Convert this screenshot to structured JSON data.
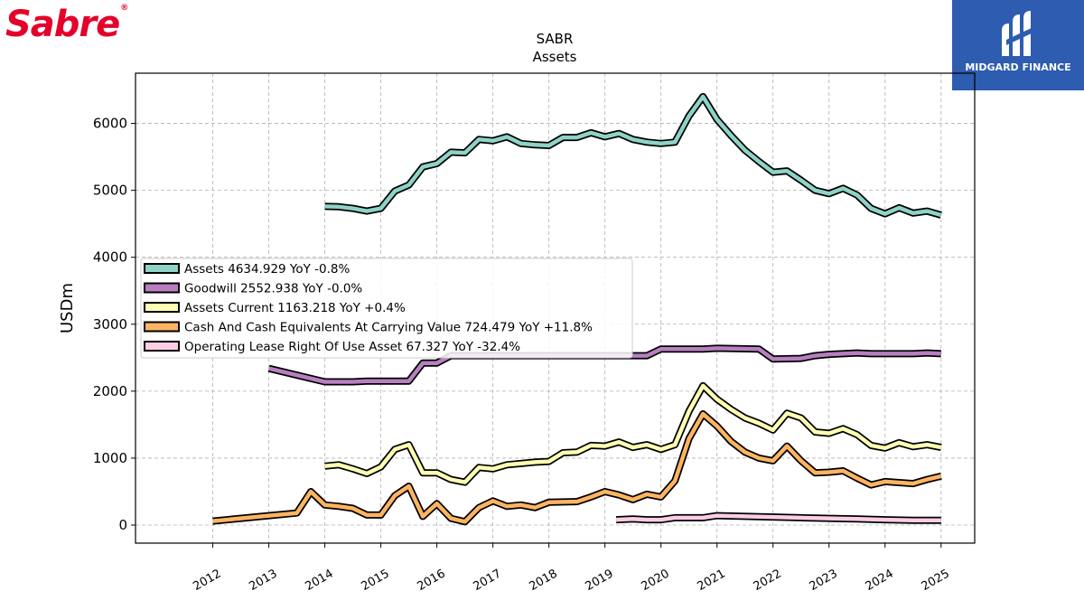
{
  "brand": {
    "left_logo": "Sabre",
    "right_logo": "MIDGARD FINANCE"
  },
  "colors": {
    "assets": "#8dd3c7",
    "goodwill": "#b77fc0",
    "assets_current": "#ffffb3",
    "cash": "#fdb462",
    "lease": "#fccde5",
    "outline": "#000000",
    "grid": "#b0b0b0",
    "logo_red": "#e4002b",
    "logo_blue": "#2d5cb0"
  },
  "chart_data": {
    "type": "line",
    "title": "SABR",
    "subtitle": "Assets",
    "ylabel": "USDm",
    "xlabel": "",
    "ylim": [
      -270,
      6750
    ],
    "xlim": [
      2010.62,
      2025.6
    ],
    "y_ticks": [
      0,
      1000,
      2000,
      3000,
      4000,
      5000,
      6000
    ],
    "x_ticks": [
      "2012",
      "2013",
      "2014",
      "2015",
      "2016",
      "2017",
      "2018",
      "2019",
      "2020",
      "2021",
      "2022",
      "2023",
      "2024",
      "2025"
    ],
    "grid": true,
    "legend_position": "center-left",
    "series": [
      {
        "name": "Assets",
        "legend": "Assets  4634.929 YoY -0.8%",
        "color_key": "assets",
        "x": [
          2014.0,
          2014.25,
          2014.5,
          2014.75,
          2015.0,
          2015.25,
          2015.5,
          2015.75,
          2016.0,
          2016.25,
          2016.5,
          2016.75,
          2017.0,
          2017.25,
          2017.5,
          2017.75,
          2018.0,
          2018.25,
          2018.5,
          2018.75,
          2019.0,
          2019.25,
          2019.5,
          2019.75,
          2020.0,
          2020.25,
          2020.5,
          2020.75,
          2021.0,
          2021.25,
          2021.5,
          2021.75,
          2022.0,
          2022.25,
          2022.5,
          2022.75,
          2023.0,
          2023.25,
          2023.5,
          2023.75,
          2024.0,
          2024.25,
          2024.5,
          2024.75,
          2025.0
        ],
        "y": [
          4760,
          4755,
          4730,
          4690,
          4730,
          4990,
          5080,
          5350,
          5400,
          5570,
          5560,
          5760,
          5740,
          5800,
          5700,
          5680,
          5670,
          5790,
          5790,
          5860,
          5800,
          5850,
          5760,
          5720,
          5700,
          5720,
          6110,
          6400,
          6060,
          5820,
          5600,
          5430,
          5270,
          5290,
          5150,
          5000,
          4950,
          5030,
          4930,
          4730,
          4650,
          4740,
          4660,
          4690,
          4630
        ]
      },
      {
        "name": "Goodwill",
        "legend": "Goodwill  2552.938 YoY -0.0%",
        "color_key": "goodwill",
        "x": [
          2013.0,
          2014.0,
          2014.5,
          2014.75,
          2015.0,
          2015.5,
          2015.75,
          2016.0,
          2016.25,
          2016.5,
          2017.0,
          2018.0,
          2019.0,
          2019.75,
          2020.0,
          2020.75,
          2021.0,
          2021.75,
          2022.0,
          2022.5,
          2022.75,
          2023.0,
          2023.25,
          2023.5,
          2023.75,
          2024.0,
          2024.5,
          2024.75,
          2025.0
        ],
        "y": [
          2340,
          2140,
          2140,
          2150,
          2150,
          2150,
          2420,
          2420,
          2530,
          2530,
          2530,
          2530,
          2530,
          2530,
          2630,
          2630,
          2640,
          2630,
          2480,
          2490,
          2530,
          2550,
          2560,
          2570,
          2560,
          2560,
          2560,
          2570,
          2560
        ]
      },
      {
        "name": "Assets Current",
        "legend": "Assets Current  1163.218 YoY +0.4%",
        "color_key": "assets_current",
        "x": [
          2014.0,
          2014.25,
          2014.5,
          2014.75,
          2015.0,
          2015.25,
          2015.5,
          2015.75,
          2016.0,
          2016.25,
          2016.5,
          2016.75,
          2017.0,
          2017.25,
          2017.5,
          2017.75,
          2018.0,
          2018.25,
          2018.5,
          2018.75,
          2019.0,
          2019.25,
          2019.5,
          2019.75,
          2020.0,
          2020.25,
          2020.5,
          2020.75,
          2021.0,
          2021.25,
          2021.5,
          2021.75,
          2022.0,
          2022.25,
          2022.5,
          2022.75,
          2023.0,
          2023.25,
          2023.5,
          2023.75,
          2024.0,
          2024.25,
          2024.5,
          2024.75,
          2025.0
        ],
        "y": [
          880,
          900,
          840,
          770,
          870,
          1130,
          1200,
          780,
          780,
          680,
          640,
          860,
          840,
          900,
          920,
          940,
          950,
          1080,
          1090,
          1190,
          1180,
          1240,
          1160,
          1200,
          1130,
          1200,
          1700,
          2080,
          1880,
          1730,
          1600,
          1520,
          1420,
          1670,
          1600,
          1390,
          1370,
          1440,
          1350,
          1190,
          1150,
          1230,
          1170,
          1200,
          1160
        ]
      },
      {
        "name": "Cash And Cash Equivalents At Carrying Value",
        "legend": "Cash And Cash Equivalents At Carrying Value  724.479 YoY +11.8%",
        "color_key": "cash",
        "x": [
          2012.0,
          2013.0,
          2013.5,
          2013.75,
          2014.0,
          2014.25,
          2014.5,
          2014.75,
          2015.0,
          2015.25,
          2015.5,
          2015.75,
          2016.0,
          2016.25,
          2016.5,
          2016.75,
          2017.0,
          2017.25,
          2017.5,
          2017.75,
          2018.0,
          2018.5,
          2018.75,
          2019.0,
          2019.25,
          2019.5,
          2019.75,
          2020.0,
          2020.25,
          2020.5,
          2020.75,
          2021.0,
          2021.25,
          2021.5,
          2021.75,
          2022.0,
          2022.25,
          2022.5,
          2022.75,
          2023.0,
          2023.25,
          2023.5,
          2023.75,
          2024.0,
          2024.5,
          2024.75,
          2025.0
        ],
        "y": [
          60,
          140,
          180,
          500,
          300,
          280,
          250,
          150,
          150,
          440,
          580,
          130,
          320,
          100,
          50,
          260,
          360,
          280,
          300,
          260,
          340,
          350,
          420,
          500,
          450,
          380,
          460,
          420,
          660,
          1290,
          1660,
          1480,
          1250,
          1090,
          1000,
          960,
          1180,
          960,
          780,
          790,
          810,
          700,
          600,
          650,
          620,
          680,
          730
        ]
      },
      {
        "name": "Operating Lease Right Of Use Asset",
        "legend": "Operating Lease Right Of Use Asset  67.327 YoY -32.4%",
        "color_key": "lease",
        "x": [
          2019.2,
          2019.5,
          2019.75,
          2020.0,
          2020.25,
          2020.5,
          2020.75,
          2021.0,
          2021.5,
          2022.0,
          2022.5,
          2023.0,
          2023.5,
          2024.0,
          2024.5,
          2025.0
        ],
        "y": [
          80,
          90,
          80,
          80,
          110,
          110,
          110,
          140,
          130,
          120,
          110,
          100,
          90,
          80,
          70,
          70
        ]
      }
    ]
  }
}
